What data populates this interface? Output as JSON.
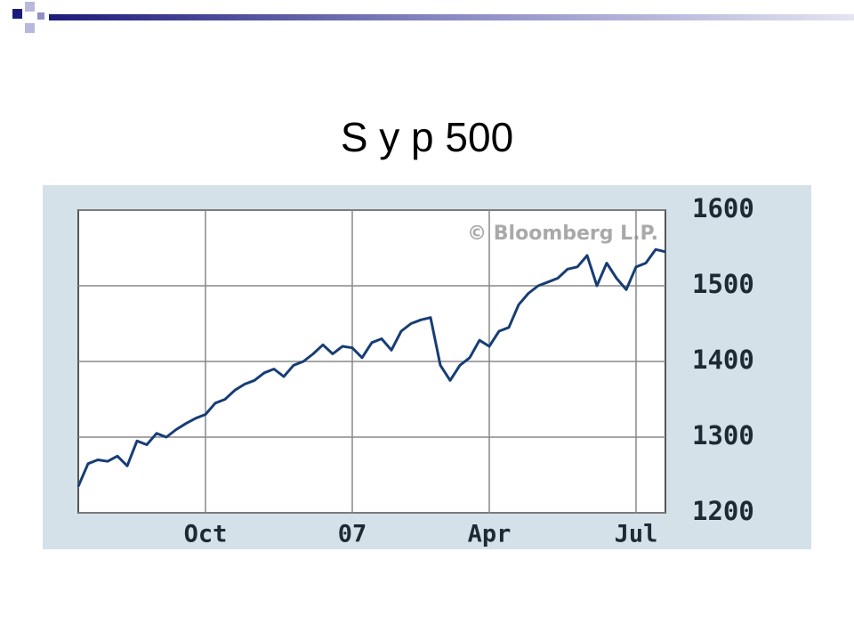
{
  "chart_data": {
    "type": "line",
    "title": "S y p 500",
    "watermark": "© Bloomberg L.P.",
    "categories": [
      null,
      null,
      null,
      null,
      null,
      null,
      null,
      null,
      null,
      null,
      null,
      null,
      null,
      "Oct",
      null,
      null,
      null,
      null,
      null,
      null,
      null,
      null,
      null,
      null,
      null,
      null,
      null,
      null,
      "07",
      null,
      null,
      null,
      null,
      null,
      null,
      null,
      null,
      null,
      null,
      null,
      null,
      null,
      "Apr",
      null,
      null,
      null,
      null,
      null,
      null,
      null,
      null,
      null,
      null,
      null,
      null,
      null,
      null,
      "Jul",
      null,
      null,
      null
    ],
    "series": [
      {
        "color": "#173d75",
        "values": [
          1235,
          1265,
          1270,
          1268,
          1275,
          1262,
          1295,
          1290,
          1305,
          1300,
          1310,
          1318,
          1325,
          1330,
          1345,
          1350,
          1362,
          1370,
          1375,
          1385,
          1390,
          1380,
          1395,
          1400,
          1410,
          1422,
          1410,
          1420,
          1418,
          1405,
          1425,
          1430,
          1415,
          1440,
          1450,
          1455,
          1458,
          1395,
          1375,
          1395,
          1405,
          1428,
          1420,
          1440,
          1445,
          1475,
          1490,
          1500,
          1505,
          1510,
          1522,
          1525,
          1540,
          1500,
          1530,
          1510,
          1495,
          1525,
          1530,
          1548,
          1545
        ]
      }
    ],
    "ylim": [
      1200,
      1600
    ],
    "yticks": [
      1200,
      1300,
      1400,
      1500,
      1600
    ],
    "grid": true
  }
}
